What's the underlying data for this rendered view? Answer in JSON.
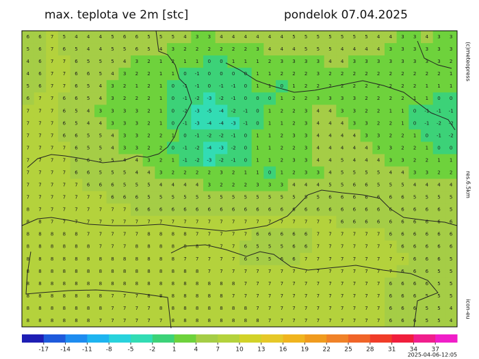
{
  "header": {
    "title": "max. teplota ve 2m [stc]",
    "date": "pondelok 07.04.2025"
  },
  "side_labels": {
    "copyright": "(c)meteopress",
    "resolution": "res.6.5km",
    "model": "icon-eu"
  },
  "timestamp": "2025-04-06-12:05",
  "colorbar": {
    "range": [
      -20,
      40
    ],
    "ticks": [
      -17,
      -14,
      -11,
      -8,
      -5,
      -2,
      1,
      4,
      7,
      10,
      13,
      16,
      19,
      22,
      25,
      28,
      31,
      34,
      37
    ],
    "colors": [
      "#1e1eb4",
      "#1e5adc",
      "#1e8cf0",
      "#1eb4f0",
      "#28d2dc",
      "#32dcb4",
      "#3cd278",
      "#6ed23c",
      "#a5cd46",
      "#b4d23c",
      "#d2d228",
      "#e6c828",
      "#f0b41e",
      "#f09b1e",
      "#f08228",
      "#f06428",
      "#f03c28",
      "#f01e3c",
      "#f01e8c",
      "#f01ec8"
    ]
  },
  "grid": {
    "rows": [
      [
        6,
        6,
        7,
        5,
        4,
        4,
        4,
        5,
        6,
        6,
        5,
        5,
        5,
        4,
        3,
        3,
        4,
        4,
        4,
        4,
        4,
        4,
        5,
        5,
        5,
        5,
        5,
        5,
        5,
        4,
        4,
        3,
        3,
        4,
        3,
        3
      ],
      [
        5,
        6,
        7,
        6,
        5,
        4,
        4,
        5,
        5,
        6,
        5,
        4,
        3,
        2,
        2,
        2,
        2,
        2,
        2,
        3,
        4,
        4,
        4,
        5,
        5,
        5,
        4,
        4,
        4,
        4,
        3,
        3,
        3,
        3,
        3,
        3
      ],
      [
        4,
        6,
        7,
        7,
        6,
        5,
        5,
        5,
        4,
        3,
        2,
        1,
        2,
        1,
        1,
        0,
        0,
        1,
        1,
        1,
        2,
        3,
        3,
        3,
        3,
        4,
        4,
        3,
        3,
        3,
        3,
        3,
        3,
        3,
        3,
        2
      ],
      [
        4,
        6,
        7,
        7,
        6,
        6,
        5,
        4,
        3,
        2,
        2,
        1,
        1,
        0,
        -1,
        0,
        0,
        0,
        0,
        1,
        1,
        2,
        2,
        2,
        3,
        2,
        2,
        2,
        2,
        2,
        2,
        2,
        2,
        2,
        2,
        1
      ],
      [
        5,
        6,
        7,
        7,
        6,
        5,
        4,
        3,
        2,
        1,
        2,
        1,
        0,
        -1,
        -1,
        0,
        -1,
        -1,
        0,
        1,
        1,
        0,
        1,
        2,
        2,
        2,
        2,
        2,
        2,
        2,
        2,
        2,
        2,
        1,
        1,
        1
      ],
      [
        6,
        7,
        7,
        6,
        6,
        5,
        4,
        3,
        2,
        2,
        2,
        1,
        0,
        -1,
        -2,
        -3,
        -2,
        -1,
        0,
        0,
        0,
        1,
        2,
        2,
        3,
        3,
        3,
        3,
        2,
        2,
        2,
        2,
        1,
        1,
        0,
        0
      ],
      [
        7,
        7,
        7,
        6,
        5,
        4,
        3,
        3,
        3,
        3,
        2,
        1,
        0,
        -2,
        -3,
        -5,
        -4,
        -2,
        -1,
        0,
        1,
        2,
        2,
        3,
        4,
        4,
        3,
        3,
        2,
        2,
        1,
        1,
        0,
        -1,
        -1,
        -1
      ],
      [
        7,
        7,
        7,
        6,
        5,
        4,
        4,
        3,
        3,
        3,
        2,
        1,
        0,
        -1,
        -3,
        -4,
        -4,
        -3,
        -1,
        0,
        1,
        1,
        2,
        3,
        4,
        4,
        4,
        3,
        3,
        2,
        2,
        1,
        0,
        -1,
        -2,
        -2
      ],
      [
        7,
        7,
        7,
        6,
        6,
        5,
        5,
        4,
        3,
        3,
        2,
        2,
        1,
        0,
        -1,
        -2,
        -2,
        -1,
        0,
        1,
        1,
        2,
        3,
        3,
        4,
        4,
        4,
        4,
        3,
        3,
        2,
        2,
        1,
        0,
        -1,
        -2
      ],
      [
        7,
        7,
        7,
        7,
        6,
        5,
        5,
        4,
        3,
        3,
        2,
        2,
        0,
        -1,
        -2,
        -4,
        -3,
        -2,
        0,
        1,
        1,
        2,
        2,
        3,
        4,
        4,
        4,
        4,
        4,
        3,
        3,
        2,
        2,
        1,
        0,
        0
      ],
      [
        7,
        7,
        7,
        7,
        6,
        6,
        5,
        5,
        4,
        4,
        3,
        2,
        1,
        -1,
        -2,
        -3,
        -2,
        -1,
        0,
        1,
        1,
        2,
        3,
        3,
        4,
        4,
        5,
        4,
        4,
        4,
        3,
        3,
        2,
        2,
        1,
        1
      ],
      [
        7,
        7,
        7,
        7,
        6,
        6,
        5,
        5,
        5,
        4,
        4,
        3,
        2,
        2,
        2,
        2,
        3,
        2,
        1,
        1,
        0,
        1,
        2,
        3,
        3,
        4,
        5,
        5,
        5,
        5,
        4,
        4,
        3,
        3,
        2,
        2
      ],
      [
        7,
        7,
        7,
        7,
        7,
        6,
        6,
        6,
        5,
        5,
        5,
        4,
        4,
        4,
        4,
        3,
        2,
        2,
        2,
        3,
        3,
        3,
        4,
        4,
        4,
        5,
        5,
        6,
        6,
        5,
        5,
        5,
        4,
        4,
        4,
        4
      ],
      [
        7,
        7,
        7,
        7,
        7,
        7,
        7,
        6,
        6,
        6,
        5,
        5,
        5,
        5,
        5,
        5,
        5,
        5,
        5,
        5,
        5,
        5,
        5,
        5,
        5,
        6,
        6,
        6,
        6,
        6,
        6,
        6,
        5,
        5,
        5,
        5
      ],
      [
        8,
        7,
        7,
        7,
        7,
        7,
        7,
        7,
        7,
        6,
        6,
        6,
        6,
        6,
        6,
        6,
        6,
        6,
        6,
        6,
        6,
        6,
        6,
        6,
        6,
        6,
        6,
        6,
        6,
        6,
        6,
        6,
        6,
        6,
        6,
        5
      ],
      [
        8,
        8,
        7,
        7,
        7,
        7,
        7,
        7,
        7,
        7,
        7,
        7,
        7,
        7,
        7,
        7,
        7,
        7,
        7,
        7,
        7,
        7,
        7,
        7,
        7,
        7,
        6,
        6,
        6,
        6,
        6,
        6,
        6,
        6,
        6,
        6
      ],
      [
        8,
        8,
        8,
        8,
        8,
        7,
        7,
        7,
        7,
        7,
        8,
        8,
        8,
        8,
        7,
        7,
        7,
        7,
        7,
        6,
        6,
        6,
        6,
        6,
        7,
        7,
        7,
        7,
        7,
        7,
        6,
        6,
        6,
        6,
        6,
        6
      ],
      [
        8,
        8,
        8,
        8,
        8,
        8,
        7,
        7,
        7,
        8,
        8,
        8,
        8,
        8,
        8,
        7,
        7,
        7,
        6,
        5,
        5,
        5,
        6,
        6,
        7,
        7,
        7,
        7,
        7,
        7,
        7,
        6,
        6,
        6,
        6,
        6
      ],
      [
        8,
        8,
        8,
        8,
        8,
        8,
        8,
        8,
        8,
        8,
        8,
        8,
        8,
        7,
        7,
        7,
        7,
        7,
        6,
        5,
        5,
        6,
        6,
        7,
        7,
        7,
        7,
        7,
        7,
        7,
        7,
        7,
        6,
        6,
        6,
        5
      ],
      [
        8,
        8,
        8,
        8,
        8,
        8,
        8,
        8,
        8,
        8,
        8,
        8,
        8,
        8,
        8,
        7,
        7,
        7,
        7,
        7,
        7,
        7,
        7,
        7,
        7,
        7,
        7,
        7,
        7,
        7,
        7,
        6,
        6,
        6,
        5,
        5
      ],
      [
        8,
        8,
        8,
        8,
        8,
        8,
        8,
        8,
        8,
        8,
        8,
        8,
        8,
        8,
        8,
        8,
        8,
        8,
        7,
        7,
        7,
        7,
        7,
        7,
        7,
        7,
        7,
        7,
        7,
        7,
        6,
        6,
        6,
        6,
        5,
        5
      ],
      [
        8,
        8,
        8,
        8,
        8,
        8,
        8,
        7,
        7,
        7,
        8,
        8,
        8,
        8,
        8,
        8,
        8,
        7,
        7,
        7,
        7,
        7,
        7,
        7,
        7,
        7,
        7,
        7,
        7,
        7,
        6,
        6,
        6,
        5,
        5,
        5
      ],
      [
        8,
        8,
        8,
        8,
        8,
        8,
        8,
        7,
        7,
        7,
        7,
        8,
        8,
        8,
        8,
        8,
        8,
        8,
        8,
        7,
        7,
        7,
        7,
        7,
        7,
        7,
        7,
        7,
        7,
        7,
        6,
        6,
        6,
        5,
        5,
        4
      ],
      [
        8,
        8,
        8,
        8,
        8,
        8,
        7,
        7,
        7,
        7,
        7,
        7,
        8,
        8,
        8,
        8,
        8,
        8,
        8,
        8,
        7,
        7,
        7,
        7,
        7,
        7,
        7,
        7,
        7,
        7,
        6,
        6,
        6,
        5,
        5,
        4
      ]
    ]
  }
}
